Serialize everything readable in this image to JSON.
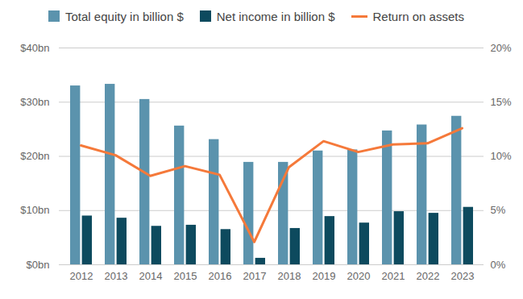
{
  "chart_data": {
    "type": "bar",
    "categories": [
      "2012",
      "2013",
      "2014",
      "2015",
      "2016",
      "2017",
      "2018",
      "2019",
      "2020",
      "2021",
      "2022",
      "2023"
    ],
    "series": [
      {
        "name": "Total equity in billion $",
        "color": "#5b93ad",
        "values": [
          33.0,
          33.3,
          30.5,
          25.6,
          23.1,
          18.9,
          18.9,
          21.0,
          21.2,
          24.7,
          25.8,
          27.4
        ]
      },
      {
        "name": "Net income in billion $",
        "color": "#0d4a5e",
        "values": [
          9.0,
          8.6,
          7.1,
          7.3,
          6.5,
          1.2,
          6.7,
          8.9,
          7.7,
          9.8,
          9.5,
          10.6
        ]
      },
      {
        "name": "Return on assets",
        "color": "#f5793a",
        "type": "line",
        "axis": "y2",
        "values": [
          11.0,
          10.1,
          8.2,
          9.1,
          8.3,
          2.1,
          9.0,
          11.4,
          10.4,
          11.1,
          11.2,
          12.6
        ]
      }
    ],
    "ylim": [
      0,
      40
    ],
    "yticks": [
      {
        "value": 0,
        "label": "$0bn"
      },
      {
        "value": 10,
        "label": "$10bn"
      },
      {
        "value": 20,
        "label": "$20bn"
      },
      {
        "value": 30,
        "label": "$30bn"
      },
      {
        "value": 40,
        "label": "$40bn"
      }
    ],
    "y2lim": [
      0,
      20
    ],
    "y2ticks": [
      {
        "value": 0,
        "label": "0%"
      },
      {
        "value": 5,
        "label": "5%"
      },
      {
        "value": 10,
        "label": "10%"
      },
      {
        "value": 15,
        "label": "15%"
      },
      {
        "value": 20,
        "label": "20%"
      }
    ],
    "grid": true,
    "legend": "top"
  }
}
